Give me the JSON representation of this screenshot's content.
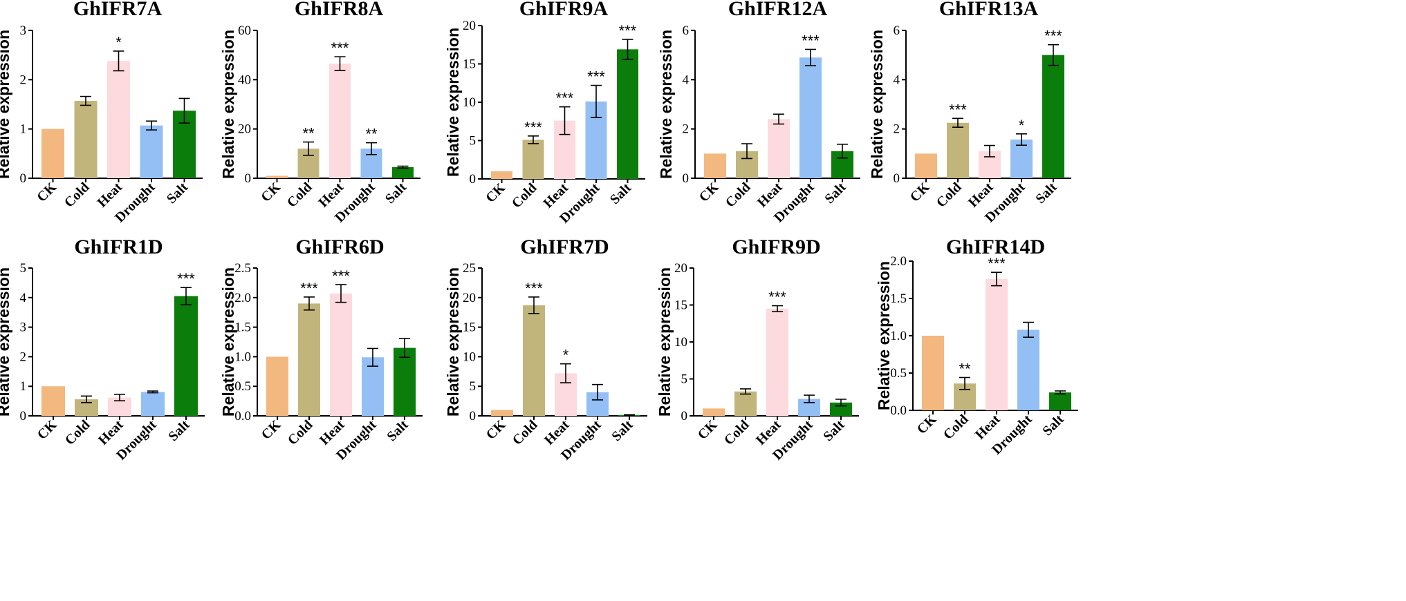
{
  "colors": {
    "CK": "#f2b880",
    "Cold": "#c2b57c",
    "Heat": "#fddadd",
    "Drought": "#93bff5",
    "Salt": "#0a7d0a"
  },
  "chart_data": [
    {
      "type": "bar",
      "title": "GhIFR7A",
      "ylabel": "Relative expression",
      "categories": [
        "CK",
        "Cold",
        "Heat",
        "Drought",
        "Salt"
      ],
      "yticks": [
        "0",
        "1",
        "2",
        "3"
      ],
      "ylim": [
        0,
        3
      ],
      "values": [
        1.0,
        1.57,
        2.38,
        1.07,
        1.37
      ],
      "errors": [
        0,
        0.09,
        0.2,
        0.09,
        0.25
      ],
      "significance": [
        "",
        "",
        "*",
        "",
        ""
      ]
    },
    {
      "type": "bar",
      "title": "GhIFR8A",
      "ylabel": "Relative expression",
      "categories": [
        "CK",
        "Cold",
        "Heat",
        "Drought",
        "Salt"
      ],
      "yticks": [
        "0",
        "20",
        "40",
        "60"
      ],
      "ylim": [
        0,
        60
      ],
      "values": [
        1.0,
        12.0,
        46.5,
        12.0,
        4.5
      ],
      "errors": [
        0,
        2.7,
        2.8,
        2.4,
        0.4
      ],
      "significance": [
        "",
        "**",
        "***",
        "**",
        ""
      ]
    },
    {
      "type": "bar",
      "title": "GhIFR9A",
      "ylabel": "Relative expression",
      "categories": [
        "CK",
        "Cold",
        "Heat",
        "Drought",
        "Salt"
      ],
      "yticks": [
        "0",
        "5",
        "10",
        "15",
        "20"
      ],
      "ylim": [
        0,
        20
      ],
      "values": [
        1.0,
        5.1,
        7.6,
        10.1,
        16.9
      ],
      "errors": [
        0,
        0.5,
        1.8,
        2.1,
        1.3
      ],
      "significance": [
        "",
        "***",
        "***",
        "***",
        "***"
      ]
    },
    {
      "type": "bar",
      "title": "GhIFR12A",
      "ylabel": "Relative expression",
      "categories": [
        "CK",
        "Cold",
        "Heat",
        "Drought",
        "Salt"
      ],
      "yticks": [
        "0",
        "2",
        "4",
        "6"
      ],
      "ylim": [
        0,
        6
      ],
      "values": [
        1.0,
        1.1,
        2.4,
        4.9,
        1.1
      ],
      "errors": [
        0,
        0.3,
        0.2,
        0.33,
        0.28
      ],
      "significance": [
        "",
        "",
        "",
        "***",
        ""
      ]
    },
    {
      "type": "bar",
      "title": "GhIFR13A",
      "ylabel": "Relative expression",
      "categories": [
        "CK",
        "Cold",
        "Heat",
        "Drought",
        "Salt"
      ],
      "yticks": [
        "0",
        "2",
        "4",
        "6"
      ],
      "ylim": [
        0,
        6
      ],
      "values": [
        1.0,
        2.25,
        1.1,
        1.57,
        5.0
      ],
      "errors": [
        0,
        0.18,
        0.23,
        0.23,
        0.42
      ],
      "significance": [
        "",
        "***",
        "",
        "*",
        "***"
      ]
    },
    {
      "type": "bar",
      "title": "GhIFR1D",
      "ylabel": "Relative expression",
      "categories": [
        "CK",
        "Cold",
        "Heat",
        "Drought",
        "Salt"
      ],
      "yticks": [
        "0",
        "1",
        "2",
        "3",
        "4",
        "5"
      ],
      "ylim": [
        0,
        5
      ],
      "values": [
        1.0,
        0.56,
        0.62,
        0.81,
        4.05
      ],
      "errors": [
        0,
        0.11,
        0.11,
        0.03,
        0.29
      ],
      "significance": [
        "",
        "",
        "",
        "",
        "***"
      ]
    },
    {
      "type": "bar",
      "title": "GhIFR6D",
      "ylabel": "Relative expression",
      "categories": [
        "CK",
        "Cold",
        "Heat",
        "Drought",
        "Salt"
      ],
      "yticks": [
        "0.0",
        "0.5",
        "1.0",
        "1.5",
        "2.0",
        "2.5"
      ],
      "ylim": [
        0,
        2.5
      ],
      "values": [
        1.0,
        1.9,
        2.07,
        0.99,
        1.15
      ],
      "errors": [
        0,
        0.11,
        0.15,
        0.15,
        0.16
      ],
      "significance": [
        "",
        "***",
        "***",
        "",
        ""
      ]
    },
    {
      "type": "bar",
      "title": "GhIFR7D",
      "ylabel": "Relative expression",
      "categories": [
        "CK",
        "Cold",
        "Heat",
        "Drought",
        "Salt"
      ],
      "yticks": [
        "0",
        "5",
        "10",
        "15",
        "20",
        "25"
      ],
      "ylim": [
        0,
        25
      ],
      "values": [
        1.0,
        18.7,
        7.2,
        4.0,
        0.15
      ],
      "errors": [
        0,
        1.4,
        1.6,
        1.3,
        0.05
      ],
      "significance": [
        "",
        "***",
        "*",
        "",
        ""
      ]
    },
    {
      "type": "bar",
      "title": "GhIFR9D",
      "ylabel": "Relative expression",
      "categories": [
        "CK",
        "Cold",
        "Heat",
        "Drought",
        "Salt"
      ],
      "yticks": [
        "0",
        "5",
        "10",
        "15",
        "20"
      ],
      "ylim": [
        0,
        20
      ],
      "values": [
        1.0,
        3.3,
        14.5,
        2.3,
        1.8
      ],
      "errors": [
        0,
        0.35,
        0.4,
        0.5,
        0.45
      ],
      "significance": [
        "",
        "",
        "***",
        "",
        ""
      ]
    },
    {
      "type": "bar",
      "title": "GhIFR14D",
      "ylabel": "Relative expression",
      "categories": [
        "CK",
        "Cold",
        "Heat",
        "Drought",
        "Salt"
      ],
      "yticks": [
        "0.0",
        "0.5",
        "1.0",
        "1.5",
        "2.0"
      ],
      "ylim": [
        0,
        2
      ],
      "values": [
        1.0,
        0.36,
        1.76,
        1.08,
        0.24
      ],
      "errors": [
        0,
        0.08,
        0.09,
        0.1,
        0.02
      ],
      "significance": [
        "",
        "**",
        "***",
        "",
        ""
      ]
    }
  ]
}
